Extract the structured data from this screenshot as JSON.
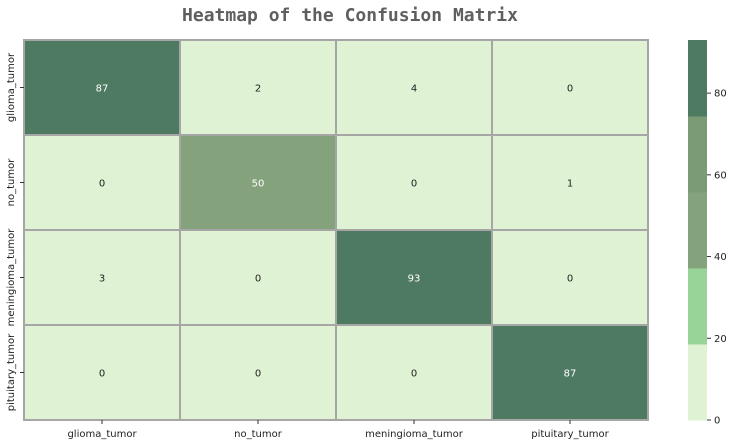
{
  "chart_data": {
    "type": "heatmap",
    "title": "Heatmap of the Confusion Matrix",
    "xlabel": "",
    "ylabel": "",
    "x_categories": [
      "glioma_tumor",
      "no_tumor",
      "meningioma_tumor",
      "pituitary_tumor"
    ],
    "y_categories": [
      "glioma_tumor",
      "no_tumor",
      "meningioma_tumor",
      "pituitary_tumor"
    ],
    "values": [
      [
        87,
        2,
        4,
        0
      ],
      [
        0,
        50,
        0,
        1
      ],
      [
        3,
        0,
        93,
        0
      ],
      [
        0,
        0,
        0,
        87
      ]
    ],
    "colorbar": {
      "range": [
        0,
        93
      ],
      "ticks": [
        0,
        20,
        40,
        60,
        80
      ],
      "colors": [
        "#dff3d4",
        "#98d497",
        "#84a37c",
        "#7b9b74",
        "#4e7a62"
      ]
    },
    "annotation_colors": {
      "light_cell_text": "#222222",
      "dark_cell_text": "#ffffff"
    },
    "gridline_color": "#a6a6a6"
  }
}
